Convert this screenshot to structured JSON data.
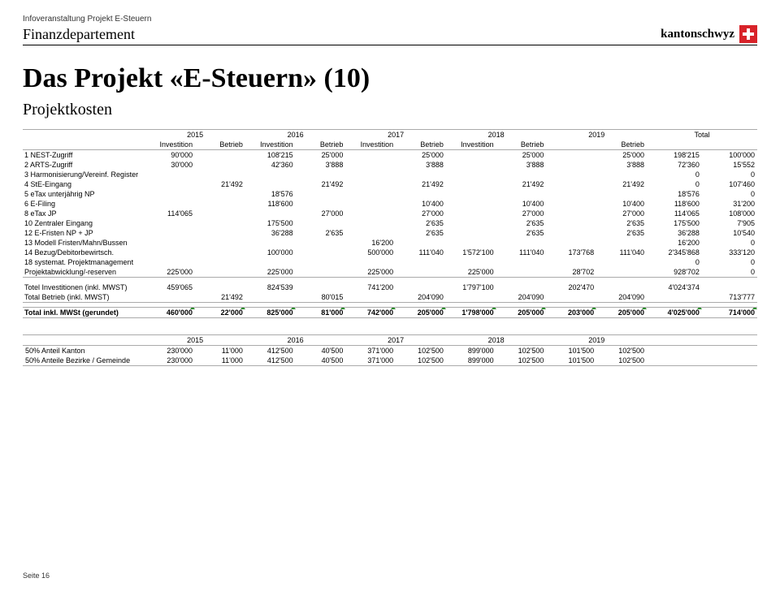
{
  "header": {
    "event": "Infoveranstaltung Projekt E-Steuern",
    "department": "Finanzdepartement",
    "logo_word": "kantonschwyz",
    "logo_color": "#d8232a"
  },
  "title": "Das Projekt «E-Steuern» (10)",
  "subtitle": "Projektkosten",
  "years": [
    "2015",
    "2016",
    "2017",
    "2018",
    "2019",
    "Total"
  ],
  "subheaders": [
    "Investition",
    "Betrieb",
    "Investition",
    "Betrieb",
    "Investition",
    "Betrieb",
    "Investition",
    "Betrieb",
    "",
    "Betrieb"
  ],
  "rows": [
    {
      "n": "1",
      "label": "NEST-Zugriff",
      "v": [
        "90'000",
        "",
        "108'215",
        "25'000",
        "",
        "25'000",
        "",
        "25'000",
        "",
        "25'000",
        "198'215",
        "100'000"
      ]
    },
    {
      "n": "2",
      "label": "ARTS-Zugriff",
      "v": [
        "30'000",
        "",
        "42'360",
        "3'888",
        "",
        "3'888",
        "",
        "3'888",
        "",
        "3'888",
        "72'360",
        "15'552"
      ]
    },
    {
      "n": "3",
      "label": "Harmonisierung/Vereinf. Register",
      "v": [
        "",
        "",
        "",
        "",
        "",
        "",
        "",
        "",
        "",
        "",
        "0",
        "0"
      ]
    },
    {
      "n": "4",
      "label": "StE-Eingang",
      "v": [
        "",
        "21'492",
        "",
        "21'492",
        "",
        "21'492",
        "",
        "21'492",
        "",
        "21'492",
        "0",
        "107'460"
      ]
    },
    {
      "n": "5",
      "label": "eTax unterjährig NP",
      "v": [
        "",
        "",
        "18'576",
        "",
        "",
        "",
        "",
        "",
        "",
        "",
        "18'576",
        "0"
      ]
    },
    {
      "n": "6",
      "label": "E-Filing",
      "v": [
        "",
        "",
        "118'600",
        "",
        "",
        "10'400",
        "",
        "10'400",
        "",
        "10'400",
        "118'600",
        "31'200"
      ]
    },
    {
      "n": "8",
      "label": "eTax JP",
      "v": [
        "114'065",
        "",
        "",
        "27'000",
        "",
        "27'000",
        "",
        "27'000",
        "",
        "27'000",
        "114'065",
        "108'000"
      ]
    },
    {
      "n": "10",
      "label": "Zentraler Eingang",
      "v": [
        "",
        "",
        "175'500",
        "",
        "",
        "2'635",
        "",
        "2'635",
        "",
        "2'635",
        "175'500",
        "7'905"
      ]
    },
    {
      "n": "12",
      "label": "E-Fristen NP + JP",
      "v": [
        "",
        "",
        "36'288",
        "2'635",
        "",
        "2'635",
        "",
        "2'635",
        "",
        "2'635",
        "36'288",
        "10'540"
      ]
    },
    {
      "n": "13",
      "label": "Modell Fristen/Mahn/Bussen",
      "v": [
        "",
        "",
        "",
        "",
        "16'200",
        "",
        "",
        "",
        "",
        "",
        "16'200",
        "0"
      ]
    },
    {
      "n": "14",
      "label": "Bezug/Debitorbewirtsch.",
      "v": [
        "",
        "",
        "100'000",
        "",
        "500'000",
        "111'040",
        "1'572'100",
        "111'040",
        "173'768",
        "111'040",
        "2'345'868",
        "333'120"
      ]
    },
    {
      "n": "18",
      "label": "systemat. Projektmanagement",
      "v": [
        "",
        "",
        "",
        "",
        "",
        "",
        "",
        "",
        "",
        "",
        "0",
        "0"
      ]
    },
    {
      "n": "",
      "label": "Projektabwicklung/-reserven",
      "v": [
        "225'000",
        "",
        "225'000",
        "",
        "225'000",
        "",
        "225'000",
        "",
        "28'702",
        "",
        "928'702",
        "0"
      ]
    }
  ],
  "totals": [
    {
      "label": "Totel Investitionen (inkl. MWST)",
      "v": [
        "459'065",
        "",
        "824'539",
        "",
        "741'200",
        "",
        "1'797'100",
        "",
        "202'470",
        "",
        "4'024'374",
        ""
      ]
    },
    {
      "label": "Total Betrieb (inkl. MWST)",
      "v": [
        "",
        "21'492",
        "",
        "80'015",
        "",
        "204'090",
        "",
        "204'090",
        "",
        "204'090",
        "",
        "713'777"
      ]
    }
  ],
  "grand": {
    "label": "Total inkl. MWSt (gerundet)",
    "v": [
      "460'000",
      "22'000",
      "825'000",
      "81'000",
      "742'000",
      "205'000",
      "1'798'000",
      "205'000",
      "203'000",
      "205'000",
      "4'025'000",
      "714'000"
    ]
  },
  "table2": {
    "years": [
      "2015",
      "",
      "2016",
      "",
      "2017",
      "",
      "2018",
      "",
      "2019",
      ""
    ],
    "rows": [
      {
        "label": "50% Anteil Kanton",
        "v": [
          "230'000",
          "11'000",
          "412'500",
          "40'500",
          "371'000",
          "102'500",
          "899'000",
          "102'500",
          "101'500",
          "102'500"
        ]
      },
      {
        "label": "50% Anteile Bezirke / Gemeinde",
        "v": [
          "230'000",
          "11'000",
          "412'500",
          "40'500",
          "371'000",
          "102'500",
          "899'000",
          "102'500",
          "101'500",
          "102'500"
        ]
      }
    ]
  },
  "footer": "Seite 16"
}
